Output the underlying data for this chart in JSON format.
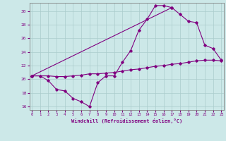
{
  "xlabel": "Windchill (Refroidissement éolien,°C)",
  "bg_color": "#cce8e8",
  "line_color": "#800080",
  "grid_color": "#aacccc",
  "xlim": [
    -0.3,
    23.3
  ],
  "ylim": [
    15.5,
    31.2
  ],
  "xticks": [
    0,
    1,
    2,
    3,
    4,
    5,
    6,
    7,
    8,
    9,
    10,
    11,
    12,
    13,
    14,
    15,
    16,
    17,
    18,
    19,
    20,
    21,
    22,
    23
  ],
  "yticks": [
    16,
    18,
    20,
    22,
    24,
    26,
    28,
    30
  ],
  "line1_x": [
    0,
    1,
    2,
    3,
    4,
    5,
    6,
    7,
    8,
    9,
    10,
    11,
    12,
    13,
    14,
    15,
    16,
    17
  ],
  "line1_y": [
    20.5,
    20.5,
    19.8,
    18.5,
    18.3,
    17.2,
    16.7,
    16.0,
    19.5,
    20.5,
    20.5,
    22.5,
    24.2,
    27.2,
    28.8,
    30.8,
    30.8,
    30.5
  ],
  "line2_x": [
    0,
    17,
    18,
    19,
    20,
    21,
    22,
    23
  ],
  "line2_y": [
    20.5,
    30.5,
    29.5,
    28.5,
    28.3,
    25.0,
    24.5,
    22.8
  ],
  "line3_x": [
    0,
    1,
    2,
    3,
    4,
    5,
    6,
    7,
    8,
    9,
    10,
    11,
    12,
    13,
    14,
    15,
    16,
    17,
    18,
    19,
    20,
    21,
    22,
    23
  ],
  "line3_y": [
    20.5,
    20.5,
    20.5,
    20.4,
    20.4,
    20.5,
    20.6,
    20.8,
    20.8,
    20.9,
    21.0,
    21.2,
    21.4,
    21.5,
    21.7,
    21.9,
    22.0,
    22.2,
    22.3,
    22.5,
    22.7,
    22.8,
    22.8,
    22.7
  ]
}
